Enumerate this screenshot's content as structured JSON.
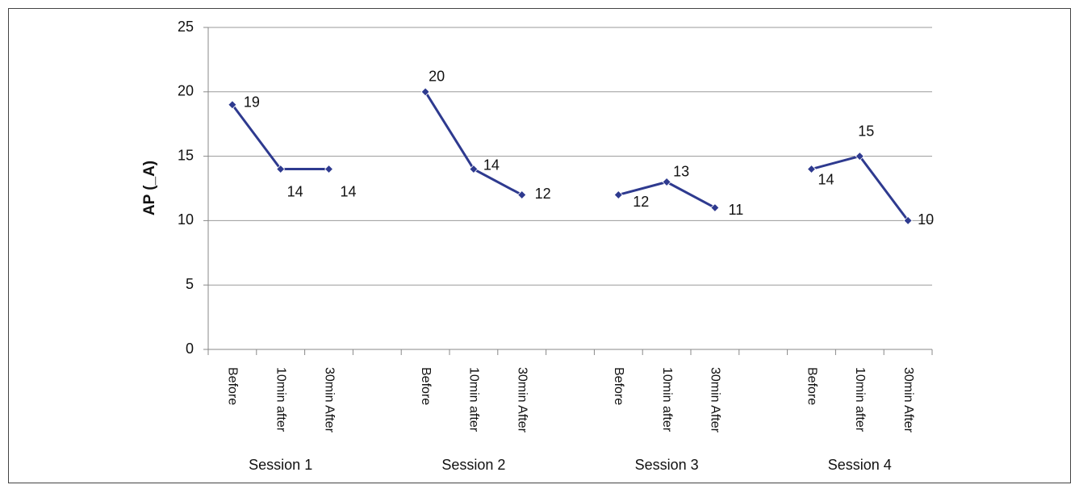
{
  "chart_data": {
    "type": "line",
    "y_label": "AP (_A)",
    "categories": [
      "Before",
      "10min after",
      "30min After",
      null,
      "Before",
      "10min after",
      "30min After",
      null,
      "Before",
      "10min after",
      "30min After",
      null,
      "Before",
      "10min after",
      "30min After"
    ],
    "group_labels": [
      "Session 1",
      "Session 2",
      "Session 3",
      "Session 4"
    ],
    "series": [
      {
        "color": "#2e3a8f",
        "values": [
          19,
          14,
          14,
          null,
          20,
          14,
          12,
          null,
          12,
          13,
          11,
          null,
          14,
          15,
          10
        ]
      }
    ],
    "ylim": [
      0,
      25
    ],
    "yticks": [
      0,
      5,
      10,
      15,
      20,
      25
    ],
    "grid": true,
    "data_labels": true
  }
}
